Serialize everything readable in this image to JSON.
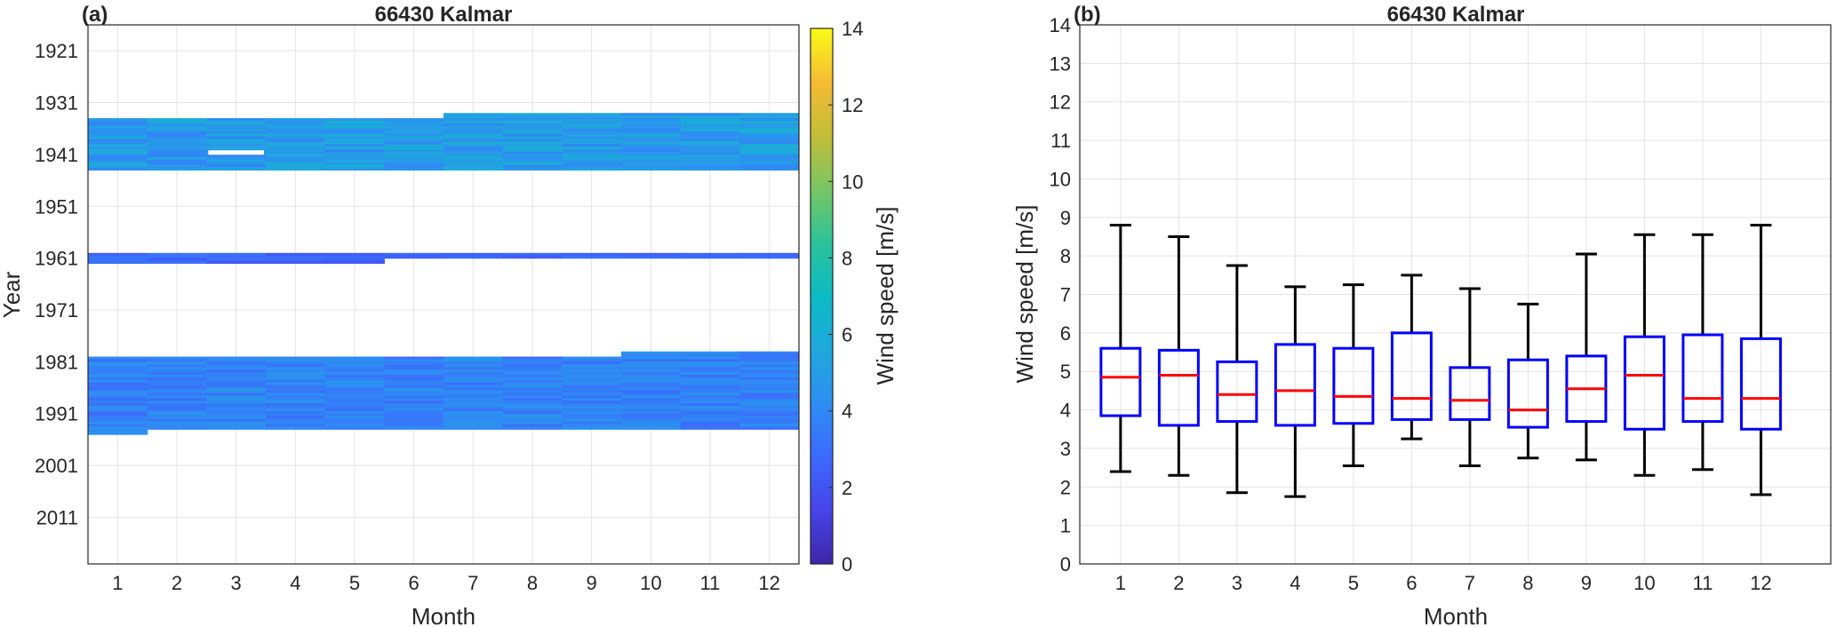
{
  "chart_data": [
    {
      "type": "heatmap",
      "panel_label": "(a)",
      "title": "66430 Kalmar",
      "xlabel": "Month",
      "ylabel": "Year",
      "x_ticks": [
        "1",
        "2",
        "3",
        "4",
        "5",
        "6",
        "7",
        "8",
        "9",
        "10",
        "11",
        "12"
      ],
      "y_ticks": [
        "1921",
        "1931",
        "1941",
        "1951",
        "1961",
        "1971",
        "1981",
        "1991",
        "2001",
        "2011"
      ],
      "ylim": [
        1916,
        2020
      ],
      "grid": true,
      "colorbar": {
        "label": "Wind speed [m/s]",
        "range": [
          0,
          14
        ],
        "ticks": [
          "0",
          "2",
          "4",
          "6",
          "8",
          "10",
          "12",
          "14"
        ],
        "colormap": "parula"
      },
      "coverage_blocks": [
        {
          "start_year": 1934,
          "end_year": 1944,
          "mean_ms": 5.0,
          "note": "earliest year varies by month"
        },
        {
          "start_year": 1960,
          "end_year": 1962,
          "mean_ms": 2.6
        },
        {
          "start_year": 1980,
          "end_year": 1995,
          "mean_ms": 3.7
        }
      ],
      "block_start_year_by_month": {
        "block_1": [
          1934,
          1934,
          1934,
          1934,
          1934,
          1934,
          1933,
          1933,
          1933,
          1933,
          1933,
          1933
        ],
        "block_3": [
          1980,
          1980,
          1980,
          1980,
          1980,
          1980,
          1980,
          1980,
          1980,
          1979,
          1979,
          1979
        ]
      },
      "block_end_year_by_month": {
        "block_2": [
          1962,
          1962,
          1962,
          1962,
          1962,
          1961,
          1961,
          1961,
          1961,
          1961,
          1961,
          1961
        ],
        "block_3": [
          1995,
          1994,
          1994,
          1994,
          1994,
          1994,
          1994,
          1994,
          1994,
          1994,
          1994,
          1994
        ]
      }
    },
    {
      "type": "box",
      "panel_label": "(b)",
      "title": "66430 Kalmar",
      "xlabel": "Month",
      "ylabel": "Wind speed [m/s]",
      "categories": [
        "1",
        "2",
        "3",
        "4",
        "5",
        "6",
        "7",
        "8",
        "9",
        "10",
        "11",
        "12"
      ],
      "y_ticks": [
        "0",
        "1",
        "2",
        "3",
        "4",
        "5",
        "6",
        "7",
        "8",
        "9",
        "10",
        "11",
        "12",
        "13",
        "14"
      ],
      "ylim": [
        0,
        14
      ],
      "xlim": [
        0.3,
        13.2
      ],
      "grid": true,
      "box_color": "#0000ff",
      "median_color": "#ff0000",
      "whisker_color": "#000000",
      "boxes": [
        {
          "month": 1,
          "min": 2.4,
          "q1": 3.85,
          "median": 4.85,
          "q3": 5.6,
          "max": 8.8
        },
        {
          "month": 2,
          "min": 2.3,
          "q1": 3.6,
          "median": 4.9,
          "q3": 5.55,
          "max": 8.5
        },
        {
          "month": 3,
          "min": 1.85,
          "q1": 3.7,
          "median": 4.4,
          "q3": 5.25,
          "max": 7.75
        },
        {
          "month": 4,
          "min": 1.75,
          "q1": 3.6,
          "median": 4.5,
          "q3": 5.7,
          "max": 7.2
        },
        {
          "month": 5,
          "min": 2.55,
          "q1": 3.65,
          "median": 4.35,
          "q3": 5.6,
          "max": 7.25
        },
        {
          "month": 6,
          "min": 3.25,
          "q1": 3.75,
          "median": 4.3,
          "q3": 6.0,
          "max": 7.5
        },
        {
          "month": 7,
          "min": 2.55,
          "q1": 3.75,
          "median": 4.25,
          "q3": 5.1,
          "max": 7.15
        },
        {
          "month": 8,
          "min": 2.75,
          "q1": 3.55,
          "median": 4.0,
          "q3": 5.3,
          "max": 6.75
        },
        {
          "month": 9,
          "min": 2.7,
          "q1": 3.7,
          "median": 4.55,
          "q3": 5.4,
          "max": 8.05
        },
        {
          "month": 10,
          "min": 2.3,
          "q1": 3.5,
          "median": 4.9,
          "q3": 5.9,
          "max": 8.55
        },
        {
          "month": 11,
          "min": 2.45,
          "q1": 3.7,
          "median": 4.3,
          "q3": 5.95,
          "max": 8.55
        },
        {
          "month": 12,
          "min": 1.8,
          "q1": 3.5,
          "median": 4.3,
          "q3": 5.85,
          "max": 8.8
        }
      ]
    }
  ]
}
